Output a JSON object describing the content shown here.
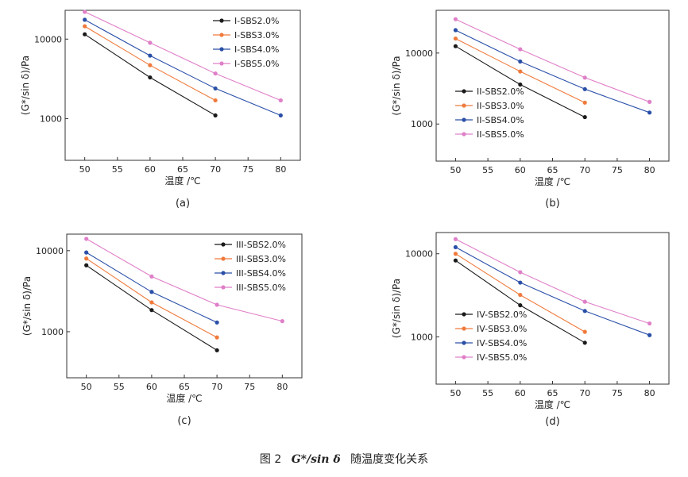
{
  "figure": {
    "caption_prefix": "图 2",
    "caption_symbol": "G*/sin δ",
    "caption_suffix": "随温度变化关系"
  },
  "chart_data": [
    {
      "id": "a",
      "type": "line",
      "panel_label": "(a)",
      "xlabel": "温度 /℃",
      "ylabel": "(G*/sin δ)/Pa",
      "yscale": "log",
      "xlim": [
        47,
        83
      ],
      "ylim": [
        300,
        23000
      ],
      "xticks": [
        50,
        55,
        60,
        65,
        70,
        75,
        80
      ],
      "yticks": [
        1000,
        10000
      ],
      "legend_position": "top-right",
      "series": [
        {
          "name": "I-SBS2.0%",
          "color": "#1a1a1a",
          "x": [
            50,
            60,
            70
          ],
          "y": [
            11500,
            3300,
            1100
          ]
        },
        {
          "name": "I-SBS3.0%",
          "color": "#f07a3c",
          "x": [
            50,
            60,
            70
          ],
          "y": [
            14500,
            4700,
            1700
          ]
        },
        {
          "name": "I-SBS4.0%",
          "color": "#2a4fa8",
          "x": [
            50,
            60,
            70,
            80
          ],
          "y": [
            17500,
            6200,
            2400,
            1100
          ]
        },
        {
          "name": "I-SBS5.0%",
          "color": "#e07fc8",
          "x": [
            50,
            60,
            70,
            80
          ],
          "y": [
            22000,
            9000,
            3700,
            1700
          ]
        }
      ]
    },
    {
      "id": "b",
      "type": "line",
      "panel_label": "(b)",
      "xlabel": "温度 /℃",
      "ylabel": "(G*/sin δ)/Pa",
      "yscale": "log",
      "xlim": [
        47,
        83
      ],
      "ylim": [
        300,
        40000
      ],
      "xticks": [
        50,
        55,
        60,
        65,
        70,
        75,
        80
      ],
      "yticks": [
        1000,
        10000
      ],
      "legend_position": "bottom-left",
      "series": [
        {
          "name": "II-SBS2.0%",
          "color": "#1a1a1a",
          "x": [
            50,
            60,
            70
          ],
          "y": [
            12500,
            3600,
            1250
          ]
        },
        {
          "name": "II-SBS3.0%",
          "color": "#f07a3c",
          "x": [
            50,
            60,
            70
          ],
          "y": [
            16000,
            5500,
            2000
          ]
        },
        {
          "name": "II-SBS4.0%",
          "color": "#2a4fa8",
          "x": [
            50,
            60,
            70,
            80
          ],
          "y": [
            21000,
            7600,
            3100,
            1450
          ]
        },
        {
          "name": "II-SBS5.0%",
          "color": "#e07fc8",
          "x": [
            50,
            60,
            70,
            80
          ],
          "y": [
            30000,
            11300,
            4500,
            2050
          ]
        }
      ]
    },
    {
      "id": "c",
      "type": "line",
      "panel_label": "(c)",
      "xlabel": "温度 /℃",
      "ylabel": "(G*/sin δ)/Pa",
      "yscale": "log",
      "xlim": [
        47,
        83
      ],
      "ylim": [
        270,
        16000
      ],
      "xticks": [
        50,
        55,
        60,
        65,
        70,
        75,
        80
      ],
      "yticks": [
        1000,
        10000
      ],
      "legend_position": "top-right",
      "series": [
        {
          "name": "III-SBS2.0%",
          "color": "#1a1a1a",
          "x": [
            50,
            60,
            70
          ],
          "y": [
            6600,
            1850,
            590
          ]
        },
        {
          "name": "III-SBS3.0%",
          "color": "#f07a3c",
          "x": [
            50,
            60,
            70
          ],
          "y": [
            8000,
            2300,
            850
          ]
        },
        {
          "name": "III-SBS4.0%",
          "color": "#2a4fa8",
          "x": [
            50,
            60,
            70
          ],
          "y": [
            9500,
            3100,
            1300
          ]
        },
        {
          "name": "III-SBS5.0%",
          "color": "#e07fc8",
          "x": [
            50,
            60,
            70,
            80
          ],
          "y": [
            14000,
            4800,
            2150,
            1350
          ]
        }
      ]
    },
    {
      "id": "d",
      "type": "line",
      "panel_label": "(d)",
      "xlabel": "温度 /℃",
      "ylabel": "(G*/sin δ)/Pa",
      "yscale": "log",
      "xlim": [
        47,
        83
      ],
      "ylim": [
        270,
        18000
      ],
      "xticks": [
        50,
        55,
        60,
        65,
        70,
        75,
        80
      ],
      "yticks": [
        1000,
        10000
      ],
      "legend_position": "bottom-left",
      "series": [
        {
          "name": "IV-SBS2.0%",
          "color": "#1a1a1a",
          "x": [
            50,
            60,
            70
          ],
          "y": [
            8300,
            2400,
            850
          ]
        },
        {
          "name": "IV-SBS3.0%",
          "color": "#f07a3c",
          "x": [
            50,
            60,
            70
          ],
          "y": [
            10000,
            3200,
            1150
          ]
        },
        {
          "name": "IV-SBS4.0%",
          "color": "#2a4fa8",
          "x": [
            50,
            60,
            70,
            80
          ],
          "y": [
            12000,
            4500,
            2050,
            1050
          ]
        },
        {
          "name": "IV-SBS5.0%",
          "color": "#e07fc8",
          "x": [
            50,
            60,
            70,
            80
          ],
          "y": [
            15000,
            6000,
            2650,
            1450
          ]
        }
      ]
    }
  ]
}
